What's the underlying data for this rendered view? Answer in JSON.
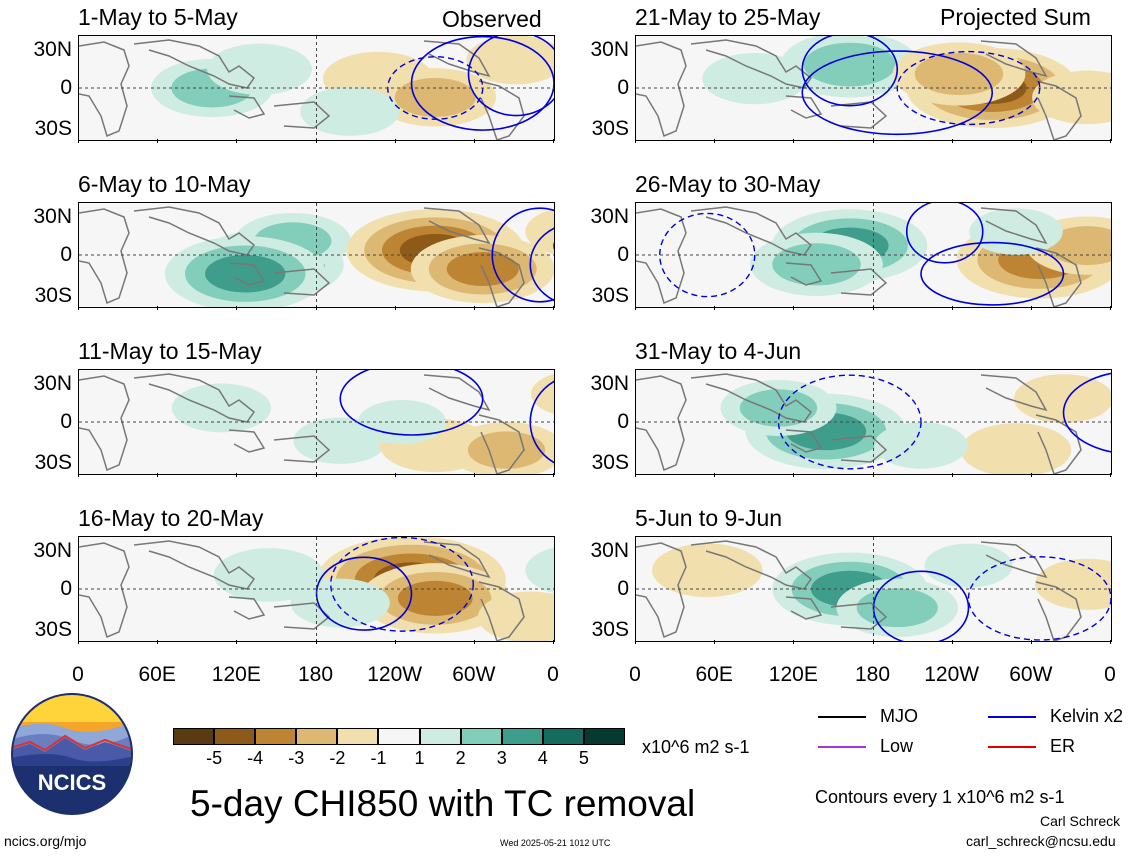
{
  "header": {
    "left_tag": "Observed",
    "right_tag": "Projected Sum"
  },
  "panels": [
    {
      "title": "1-May to 5-May",
      "anoms": [
        [
          -0.22,
          0.0,
          2.2
        ],
        [
          -0.12,
          0.4,
          1.6
        ],
        [
          0.13,
          0.2,
          -1.8
        ],
        [
          0.25,
          -0.2,
          -2.2
        ],
        [
          0.42,
          0.6,
          -1.4
        ],
        [
          0.07,
          -0.5,
          1.4
        ]
      ],
      "kelvin": [
        [
          0.42,
          0.3,
          0.1,
          0.8
        ],
        [
          0.35,
          0.1,
          0.15,
          0.9
        ]
      ],
      "other": [
        [
          0.25,
          0.0,
          0.1,
          0.6
        ]
      ]
    },
    {
      "title": "6-May to 10-May",
      "anoms": [
        [
          -0.1,
          -0.2,
          3.2
        ],
        [
          -0.05,
          0.3,
          2.0
        ],
        [
          0.25,
          0.1,
          -4.2
        ],
        [
          0.35,
          -0.3,
          -3.0
        ],
        [
          0.55,
          0.5,
          -1.6
        ],
        [
          -0.15,
          -0.4,
          3.6
        ]
      ],
      "kelvin": [
        [
          0.47,
          0.0,
          0.1,
          0.9
        ],
        [
          0.55,
          -0.2,
          0.1,
          0.8
        ]
      ],
      "other": [
        [
          0.65,
          0.2,
          0.15,
          0.7
        ]
      ]
    },
    {
      "title": "11-May to 15-May",
      "anoms": [
        [
          -0.2,
          0.3,
          1.4
        ],
        [
          0.05,
          -0.4,
          1.2
        ],
        [
          0.25,
          -0.5,
          -1.8
        ],
        [
          0.4,
          -0.6,
          -2.0
        ],
        [
          0.55,
          0.6,
          -1.2
        ],
        [
          0.18,
          0.0,
          1.0
        ]
      ],
      "kelvin": [
        [
          0.2,
          0.5,
          0.15,
          0.7
        ],
        [
          0.55,
          0.0,
          0.1,
          0.9
        ]
      ],
      "other": [
        [
          0.75,
          0.3,
          0.12,
          0.6
        ]
      ]
    },
    {
      "title": "16-May to 20-May",
      "anoms": [
        [
          0.2,
          0.2,
          -4.6
        ],
        [
          0.25,
          -0.2,
          -3.2
        ],
        [
          -0.1,
          0.3,
          1.8
        ],
        [
          0.05,
          -0.3,
          1.4
        ],
        [
          0.55,
          0.4,
          1.6
        ],
        [
          0.45,
          -0.6,
          -1.6
        ]
      ],
      "kelvin": [
        [
          0.1,
          -0.1,
          0.1,
          0.7
        ],
        [
          0.9,
          0.6,
          0.1,
          0.6
        ]
      ],
      "other": [
        [
          0.18,
          0.1,
          0.15,
          0.9
        ]
      ]
    },
    {
      "title": "21-May to 25-May",
      "anoms": [
        [
          -0.05,
          0.5,
          2.8
        ],
        [
          0.25,
          0.0,
          -4.0
        ],
        [
          0.18,
          0.3,
          -2.6
        ],
        [
          0.45,
          -0.2,
          -1.8
        ],
        [
          -0.25,
          0.2,
          1.6
        ],
        [
          0.65,
          -0.3,
          -1.2
        ]
      ],
      "kelvin": [
        [
          -0.05,
          0.4,
          0.1,
          0.7
        ],
        [
          0.05,
          -0.1,
          0.2,
          0.8
        ]
      ],
      "other": [
        [
          0.2,
          0.0,
          0.15,
          0.7
        ]
      ]
    },
    {
      "title": "26-May to 30-May",
      "anoms": [
        [
          -0.05,
          0.2,
          3.4
        ],
        [
          -0.12,
          -0.2,
          2.6
        ],
        [
          0.35,
          -0.1,
          -3.8
        ],
        [
          0.45,
          0.2,
          -2.2
        ],
        [
          0.7,
          0.3,
          -1.4
        ],
        [
          0.3,
          0.5,
          1.2
        ]
      ],
      "kelvin": [
        [
          0.15,
          0.5,
          0.08,
          0.6
        ],
        [
          0.25,
          -0.4,
          0.15,
          0.6
        ]
      ],
      "other": [
        [
          -0.35,
          0.0,
          0.1,
          0.8
        ]
      ]
    },
    {
      "title": "31-May to 4-Jun",
      "anoms": [
        [
          -0.1,
          -0.2,
          3.6
        ],
        [
          -0.2,
          0.3,
          2.0
        ],
        [
          0.3,
          -0.6,
          -1.8
        ],
        [
          0.4,
          0.5,
          -1.4
        ],
        [
          0.65,
          0.7,
          -1.6
        ],
        [
          0.1,
          -0.5,
          1.2
        ]
      ],
      "kelvin": [
        [
          0.55,
          0.2,
          0.15,
          0.8
        ],
        [
          0.65,
          -0.2,
          0.1,
          0.8
        ]
      ],
      "other": [
        [
          -0.05,
          0.0,
          0.15,
          0.9
        ]
      ]
    },
    {
      "title": "5-Jun to 9-Jun",
      "anoms": [
        [
          -0.05,
          0.0,
          3.4
        ],
        [
          0.05,
          -0.4,
          2.2
        ],
        [
          -0.35,
          0.4,
          -1.8
        ],
        [
          0.45,
          0.1,
          -1.6
        ],
        [
          0.7,
          -0.5,
          -1.2
        ],
        [
          0.2,
          0.5,
          1.0
        ]
      ],
      "kelvin": [
        [
          0.1,
          -0.4,
          0.1,
          0.7
        ],
        [
          0.9,
          0.0,
          0.15,
          0.8
        ]
      ],
      "other": [
        [
          0.35,
          -0.2,
          0.15,
          0.8
        ]
      ]
    }
  ],
  "axes": {
    "y_ticks": [
      "30N",
      "0",
      "30S"
    ],
    "x_ticks": [
      "0",
      "60E",
      "120E",
      "180",
      "120W",
      "60W",
      "0"
    ]
  },
  "colorbar": {
    "labels": [
      "-5",
      "-4",
      "-3",
      "-2",
      "-1",
      "1",
      "2",
      "3",
      "4",
      "5"
    ],
    "colors": [
      "#5a3a10",
      "#8e5a1a",
      "#bd8533",
      "#ddb873",
      "#f2dfae",
      "#f6f6f6",
      "#cfece3",
      "#83cdbb",
      "#3f9e8b",
      "#156b5c",
      "#053a30"
    ],
    "units": "x10^6 m2 s-1"
  },
  "legend": {
    "items": [
      {
        "label": "MJO",
        "color": "#000000"
      },
      {
        "label": "Kelvin x2",
        "color": "#0000dd"
      },
      {
        "label": "Low",
        "color": "#aa33dd"
      },
      {
        "label": "ER",
        "color": "#dd0000"
      }
    ],
    "contour_note": "Contours every 1 x10^6 m2 s-1"
  },
  "logo": {
    "text": "NCICS"
  },
  "footer": {
    "title": "5-day CHI850 with TC removal",
    "url": "ncics.org/mjo",
    "timestamp": "Wed 2025-05-21 1012 UTC",
    "author": "Carl Schreck",
    "email": "carl_schreck@ncsu.edu"
  }
}
